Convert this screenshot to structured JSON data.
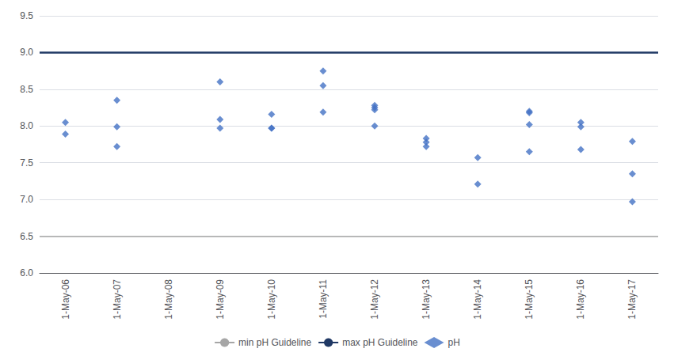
{
  "chart_data": {
    "type": "scatter",
    "categories": [
      "1-May-06",
      "1-May-07",
      "1-May-08",
      "1-May-09",
      "1-May-10",
      "1-May-11",
      "1-May-12",
      "1-May-13",
      "1-May-14",
      "1-May-15",
      "1-May-16",
      "1-May-17"
    ],
    "series": [
      {
        "name": "pH",
        "color": "#4472c4",
        "marker": "diamond",
        "values": [
          [
            7.89,
            8.05
          ],
          [
            8.35,
            7.99,
            7.72
          ],
          [],
          [
            8.6,
            8.09,
            7.97
          ],
          [
            8.16,
            7.97,
            7.97
          ],
          [
            8.75,
            8.55,
            8.19
          ],
          [
            8.0,
            8.25,
            8.28,
            8.22
          ],
          [
            7.83,
            7.78,
            7.72
          ],
          [
            7.21,
            7.57
          ],
          [
            8.2,
            8.18,
            7.65,
            8.02
          ],
          [
            8.05,
            7.99,
            7.68
          ],
          [
            6.97,
            7.35,
            7.79
          ]
        ]
      }
    ],
    "guidelines": [
      {
        "name": "min pH Guideline",
        "value": 6.5,
        "color": "#a6a6a6"
      },
      {
        "name": "max pH Guideline",
        "value": 9.0,
        "color": "#1f3864"
      }
    ],
    "ylim": [
      6.0,
      9.5
    ],
    "yticks": [
      {
        "value": 6.0,
        "label": "6.0"
      },
      6.5,
      {
        "value": 7.0,
        "label": "7.0"
      },
      7.5,
      {
        "value": 8.0,
        "label": "8.0"
      },
      8.5,
      {
        "value": 9.0,
        "label": "9.0"
      },
      9.5
    ],
    "grid": true,
    "legend": "bottom"
  }
}
